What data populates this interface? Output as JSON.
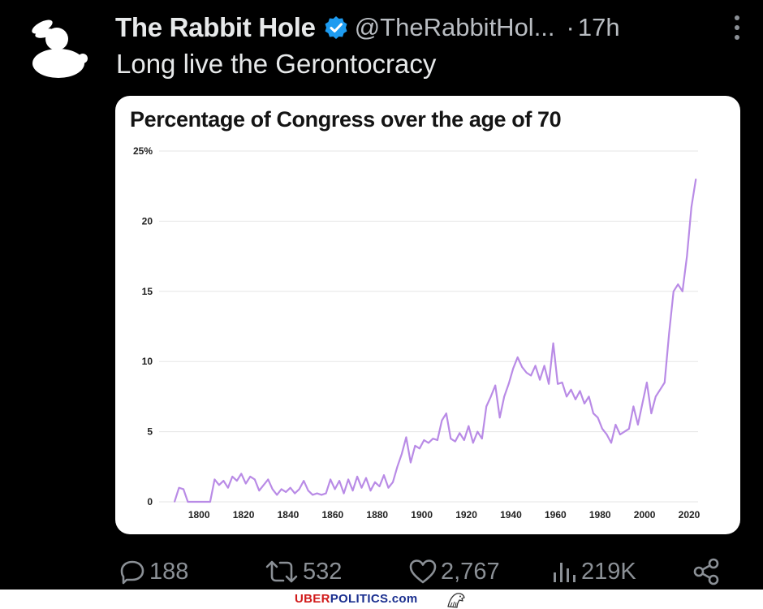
{
  "tweet": {
    "author_name": "The Rabbit Hole",
    "handle": "@TheRabbitHol...",
    "separator": "·",
    "time": "17h",
    "text": "Long live the Gerontocracy",
    "verified_color": "#1d9bf0"
  },
  "actions": {
    "replies": "188",
    "reposts": "532",
    "likes": "2,767",
    "views": "219K"
  },
  "footer": {
    "brand_part1": "UBER",
    "brand_part2": "POLITICS.com"
  },
  "chart_data": {
    "type": "line",
    "title": "Percentage of Congress over the age of 70",
    "xlabel": "",
    "ylabel": "",
    "xlim": [
      1785,
      2024
    ],
    "ylim": [
      0,
      25
    ],
    "x_ticks": [
      "1800",
      "1820",
      "1840",
      "1860",
      "1880",
      "1900",
      "1920",
      "1940",
      "1960",
      "1980",
      "2000",
      "2020"
    ],
    "y_ticks": [
      "0",
      "5",
      "10",
      "15",
      "20",
      "25%"
    ],
    "grid": true,
    "color": "#b98be6",
    "series": [
      {
        "x": [
          1789,
          1791,
          1793,
          1795,
          1797,
          1799,
          1801,
          1803,
          1805,
          1807,
          1809,
          1811,
          1813,
          1815,
          1817,
          1819,
          1821,
          1823,
          1825,
          1827,
          1829,
          1831,
          1833,
          1835,
          1837,
          1839,
          1841,
          1843,
          1845,
          1847,
          1849,
          1851,
          1853,
          1855,
          1857,
          1859,
          1861,
          1863,
          1865,
          1867,
          1869,
          1871,
          1873,
          1875,
          1877,
          1879,
          1881,
          1883,
          1885,
          1887,
          1889,
          1891,
          1893,
          1895,
          1897,
          1899,
          1901,
          1903,
          1905,
          1907,
          1909,
          1911,
          1913,
          1915,
          1917,
          1919,
          1921,
          1923,
          1925,
          1927,
          1929,
          1931,
          1933,
          1935,
          1937,
          1939,
          1941,
          1943,
          1945,
          1947,
          1949,
          1951,
          1953,
          1955,
          1957,
          1959,
          1961,
          1963,
          1965,
          1967,
          1969,
          1971,
          1973,
          1975,
          1977,
          1979,
          1981,
          1983,
          1985,
          1987,
          1989,
          1991,
          1993,
          1995,
          1997,
          1999,
          2001,
          2003,
          2005,
          2007,
          2009,
          2011,
          2013,
          2015,
          2017,
          2019,
          2021,
          2023
        ],
        "y": [
          0.0,
          1.0,
          0.9,
          0.0,
          0.0,
          0.0,
          0.0,
          0.0,
          0.0,
          1.6,
          1.2,
          1.5,
          1.0,
          1.8,
          1.5,
          2.0,
          1.3,
          1.8,
          1.6,
          0.8,
          1.2,
          1.6,
          0.9,
          0.5,
          0.9,
          0.7,
          1.0,
          0.6,
          0.9,
          1.5,
          0.8,
          0.5,
          0.6,
          0.5,
          0.6,
          1.6,
          0.9,
          1.5,
          0.6,
          1.6,
          0.8,
          1.8,
          1.0,
          1.7,
          0.8,
          1.4,
          1.1,
          1.9,
          1.0,
          1.4,
          2.5,
          3.4,
          4.6,
          2.8,
          4.0,
          3.8,
          4.4,
          4.2,
          4.5,
          4.4,
          5.8,
          6.3,
          4.5,
          4.3,
          4.9,
          4.4,
          5.4,
          4.2,
          5.0,
          4.5,
          6.8,
          7.5,
          8.3,
          6.0,
          7.5,
          8.4,
          9.5,
          10.3,
          9.6,
          9.2,
          9.0,
          9.7,
          8.7,
          9.7,
          8.4,
          11.3,
          8.4,
          8.5,
          7.5,
          8.0,
          7.3,
          7.9,
          7.0,
          7.5,
          6.3,
          6.0,
          5.2,
          4.8,
          4.2,
          5.5,
          4.8,
          5.0,
          5.2,
          6.8,
          5.5,
          7.0,
          8.5,
          6.3,
          7.5,
          8.0,
          8.5,
          12.0,
          15.0,
          15.5,
          15.0,
          17.5,
          21.0,
          23.0
        ]
      }
    ]
  }
}
